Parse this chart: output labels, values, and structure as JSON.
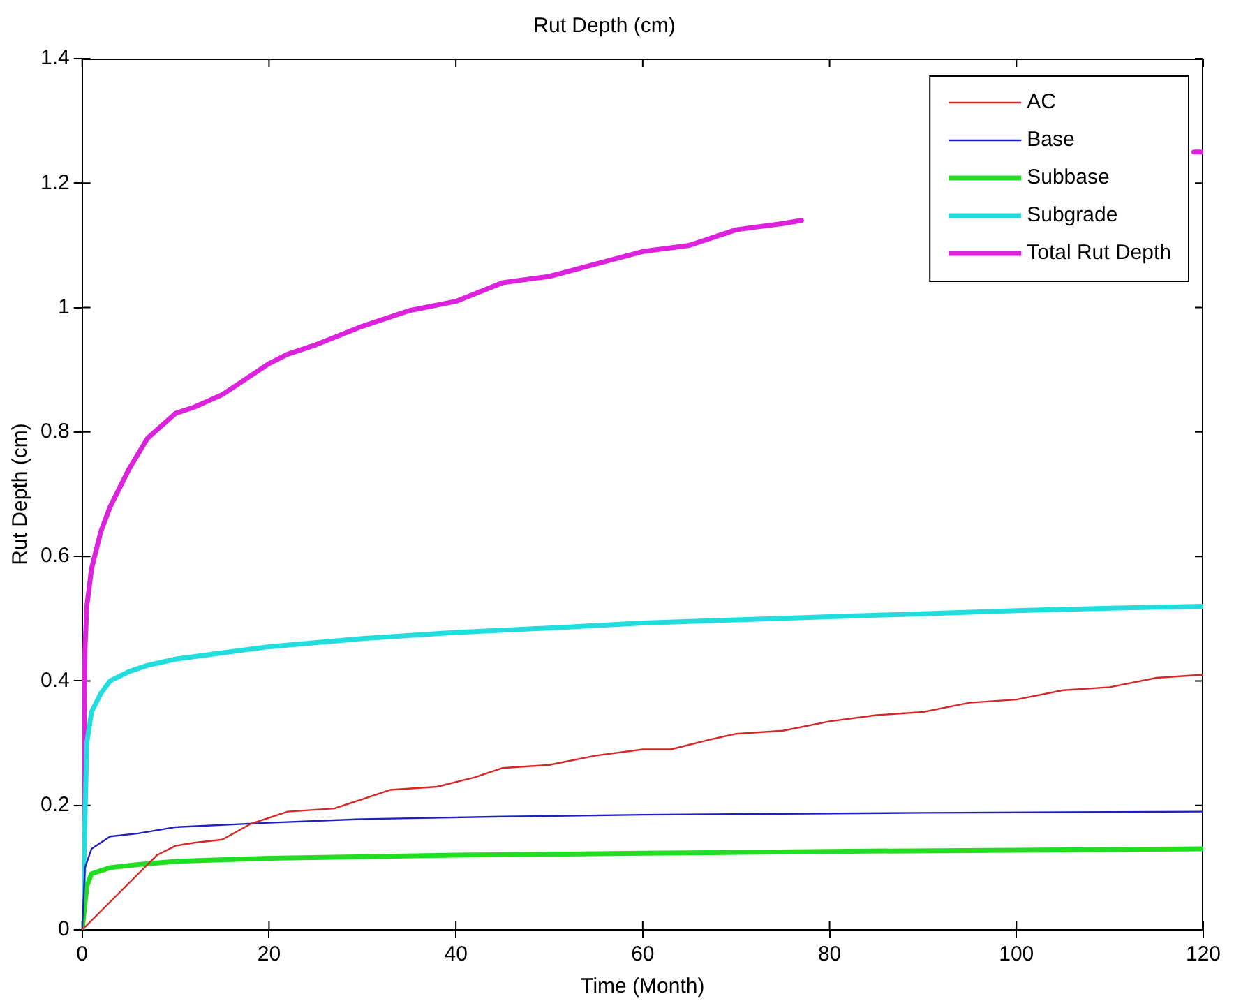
{
  "chart_data": {
    "type": "line",
    "title": "Rut Depth (cm)",
    "xlabel": "Time (Month)",
    "ylabel": "Rut Depth (cm)",
    "xlim": [
      0,
      120
    ],
    "xticks": [
      0,
      20,
      40,
      60,
      80,
      100,
      120
    ],
    "ylim": [
      0,
      1.4
    ],
    "yticks": [
      0,
      0.2,
      0.4,
      0.6,
      0.8,
      1,
      1.2,
      1.4
    ],
    "legend": "top right",
    "series": [
      {
        "name": "AC",
        "color": "#d62728",
        "x": [
          0,
          2,
          4,
          6,
          8,
          10,
          12,
          15,
          18,
          22,
          27,
          30,
          33,
          38,
          42,
          45,
          50,
          55,
          60,
          63,
          67,
          70,
          75,
          80,
          85,
          90,
          95,
          100,
          105,
          110,
          115,
          120
        ],
        "values": [
          0,
          0.03,
          0.06,
          0.09,
          0.12,
          0.135,
          0.14,
          0.145,
          0.17,
          0.19,
          0.195,
          0.21,
          0.225,
          0.23,
          0.245,
          0.26,
          0.265,
          0.28,
          0.29,
          0.29,
          0.305,
          0.315,
          0.32,
          0.335,
          0.345,
          0.35,
          0.365,
          0.37,
          0.385,
          0.39,
          0.405,
          0.41
        ]
      },
      {
        "name": "Base",
        "color": "#2020c0",
        "x": [
          0,
          0.3,
          1,
          3,
          6,
          10,
          20,
          30,
          45,
          60,
          90,
          120
        ],
        "values": [
          0,
          0.1,
          0.13,
          0.15,
          0.155,
          0.165,
          0.172,
          0.178,
          0.182,
          0.185,
          0.188,
          0.19
        ]
      },
      {
        "name": "Subbase",
        "color": "#22dd22",
        "x": [
          0,
          0.5,
          1,
          3,
          6,
          10,
          20,
          40,
          60,
          80,
          100,
          120
        ],
        "values": [
          0,
          0.07,
          0.09,
          0.1,
          0.105,
          0.11,
          0.115,
          0.12,
          0.123,
          0.126,
          0.128,
          0.13
        ]
      },
      {
        "name": "Subgrade",
        "color": "#22dddd",
        "x": [
          0,
          0.5,
          1,
          2,
          3,
          5,
          7,
          10,
          15,
          20,
          30,
          40,
          50,
          60,
          70,
          80,
          90,
          100,
          110,
          120
        ],
        "values": [
          0,
          0.3,
          0.35,
          0.38,
          0.4,
          0.415,
          0.425,
          0.435,
          0.445,
          0.455,
          0.468,
          0.478,
          0.485,
          0.493,
          0.498,
          0.503,
          0.508,
          0.513,
          0.517,
          0.52
        ]
      },
      {
        "name": "Total Rut Depth",
        "color": "#dd22dd",
        "x": [
          0,
          0.3,
          0.5,
          1,
          2,
          3,
          5,
          7,
          10,
          12,
          15,
          20,
          22,
          25,
          30,
          35,
          40,
          45,
          50,
          55,
          60,
          65,
          70,
          75,
          77,
          80,
          119,
          120
        ],
        "values": [
          0,
          0.45,
          0.52,
          0.58,
          0.64,
          0.68,
          0.74,
          0.79,
          0.83,
          0.84,
          0.86,
          0.91,
          0.925,
          0.94,
          0.97,
          0.995,
          1.01,
          1.04,
          1.05,
          1.07,
          1.09,
          1.1,
          1.125,
          1.135,
          1.14,
          null,
          1.25,
          1.25
        ]
      }
    ]
  }
}
